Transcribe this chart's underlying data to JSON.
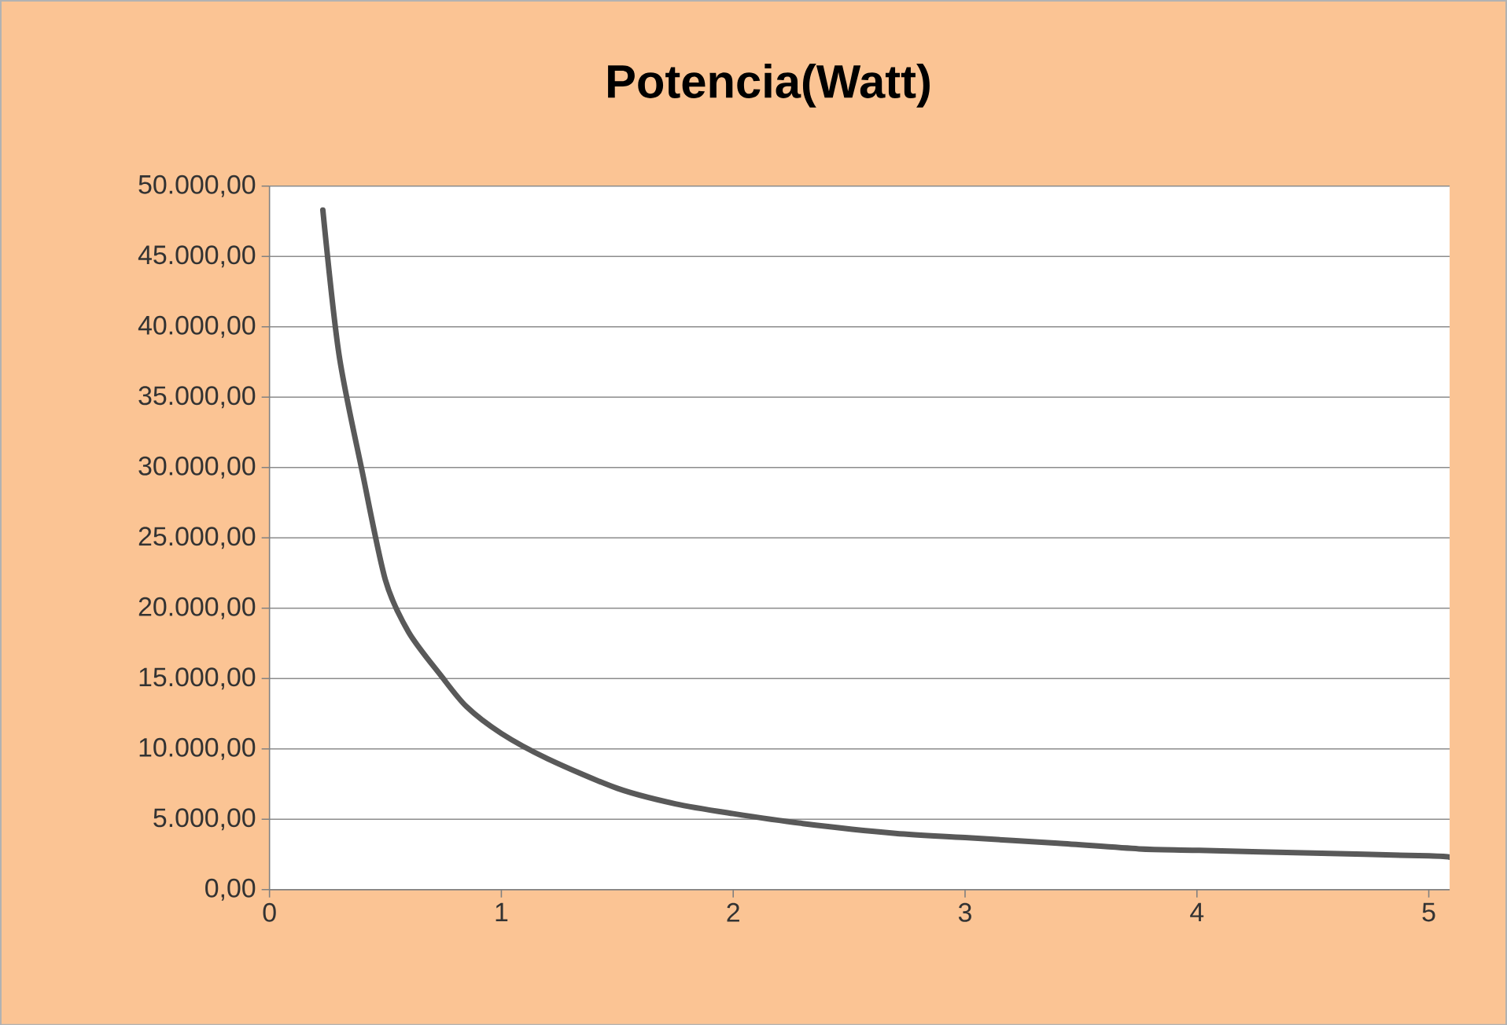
{
  "chart_data": {
    "type": "line",
    "title": "Potencia(Watt)",
    "x": [
      0.23,
      0.3,
      0.4,
      0.5,
      0.6,
      0.74,
      0.85,
      1.0,
      1.2,
      1.5,
      1.75,
      2.0,
      2.3,
      2.7,
      3.0,
      3.4,
      3.75,
      4.0,
      4.5,
      5.0,
      5.09
    ],
    "values": [
      48300,
      38000,
      29700,
      22000,
      18300,
      15200,
      13000,
      11100,
      9300,
      7200,
      6100,
      5400,
      4700,
      4000,
      3700,
      3300,
      2900,
      2800,
      2600,
      2400,
      2300
    ],
    "color": "#595959",
    "xlim": [
      0,
      5.09
    ],
    "ylim": [
      0,
      50000
    ],
    "xticks": [
      0,
      1,
      2,
      3,
      4,
      5
    ],
    "yticks": [
      {
        "value": 0,
        "label": "0,00"
      },
      {
        "value": 5000,
        "label": "5.000,00"
      },
      {
        "value": 10000,
        "label": "10.000,00"
      },
      {
        "value": 15000,
        "label": "15.000,00"
      },
      {
        "value": 20000,
        "label": "20.000,00"
      },
      {
        "value": 25000,
        "label": "25.000,00"
      },
      {
        "value": 30000,
        "label": "30.000,00"
      },
      {
        "value": 35000,
        "label": "35.000,00"
      },
      {
        "value": 40000,
        "label": "40.000,00"
      },
      {
        "value": 45000,
        "label": "45.000,00"
      },
      {
        "value": 50000,
        "label": "50.000,00"
      }
    ],
    "grid": "y",
    "marker": "none",
    "line_style": "solid"
  }
}
